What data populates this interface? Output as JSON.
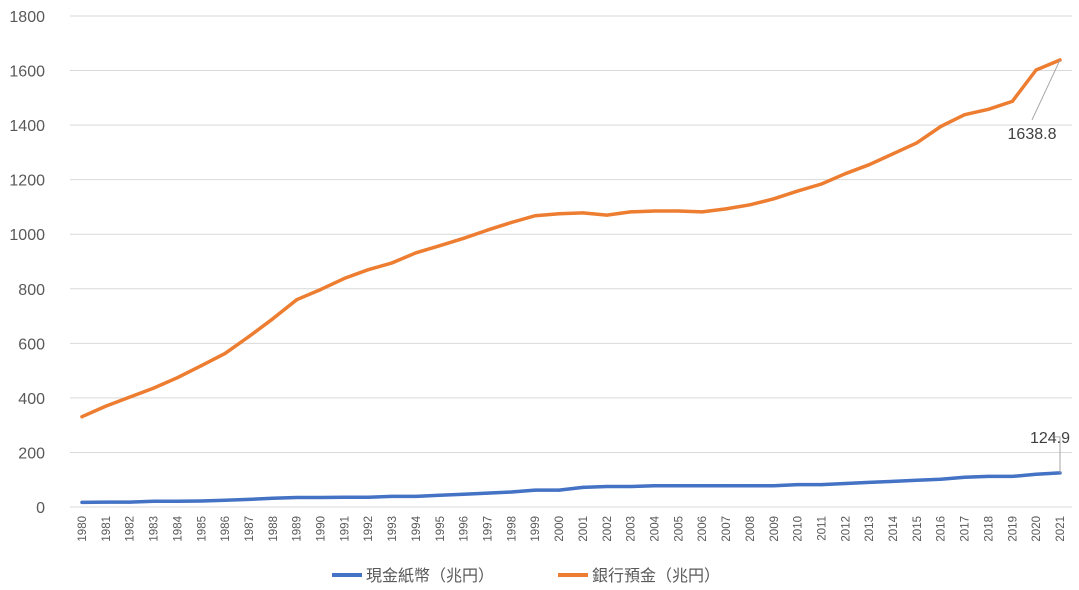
{
  "chart_data": {
    "type": "line",
    "title": "",
    "xlabel": "",
    "ylabel": "",
    "ylim": [
      0,
      1800
    ],
    "yticks": [
      0,
      200,
      400,
      600,
      800,
      1000,
      1200,
      1400,
      1600,
      1800
    ],
    "grid": "horizontal",
    "legend_position": "bottom",
    "categories": [
      "1980",
      "1981",
      "1982",
      "1983",
      "1984",
      "1985",
      "1986",
      "1987",
      "1988",
      "1989",
      "1990",
      "1991",
      "1992",
      "1993",
      "1994",
      "1995",
      "1996",
      "1997",
      "1998",
      "1999",
      "2000",
      "2001",
      "2002",
      "2003",
      "2004",
      "2005",
      "2006",
      "2007",
      "2008",
      "2009",
      "2010",
      "2011",
      "2012",
      "2013",
      "2014",
      "2015",
      "2016",
      "2017",
      "2018",
      "2019",
      "2020",
      "2021"
    ],
    "series": [
      {
        "name": "現金紙幣（兆円）",
        "color": "#4472C4",
        "values": [
          17,
          18,
          18,
          21,
          21,
          22,
          25,
          28,
          32,
          35,
          35,
          36,
          36,
          39,
          39,
          43,
          47,
          51,
          55,
          62,
          62,
          72,
          75,
          75,
          78,
          78,
          78,
          78,
          78,
          78,
          82,
          82,
          86,
          90,
          94,
          98,
          102,
          109,
          112,
          112,
          120,
          124.9
        ]
      },
      {
        "name": "銀行預金（兆円）",
        "color": "#ED7D31",
        "values": [
          331,
          370,
          403,
          436,
          474,
          518,
          563,
          625,
          690,
          760,
          797,
          838,
          870,
          895,
          932,
          958,
          985,
          1015,
          1043,
          1068,
          1075,
          1078,
          1070,
          1082,
          1085,
          1085,
          1082,
          1093,
          1108,
          1130,
          1158,
          1184,
          1222,
          1255,
          1295,
          1335,
          1395,
          1438,
          1458,
          1487,
          1602,
          1638.8
        ]
      }
    ],
    "annotations": [
      {
        "series": 1,
        "index": 41,
        "text": "1638.8"
      },
      {
        "series": 0,
        "index": 41,
        "text": "124.9"
      }
    ]
  }
}
